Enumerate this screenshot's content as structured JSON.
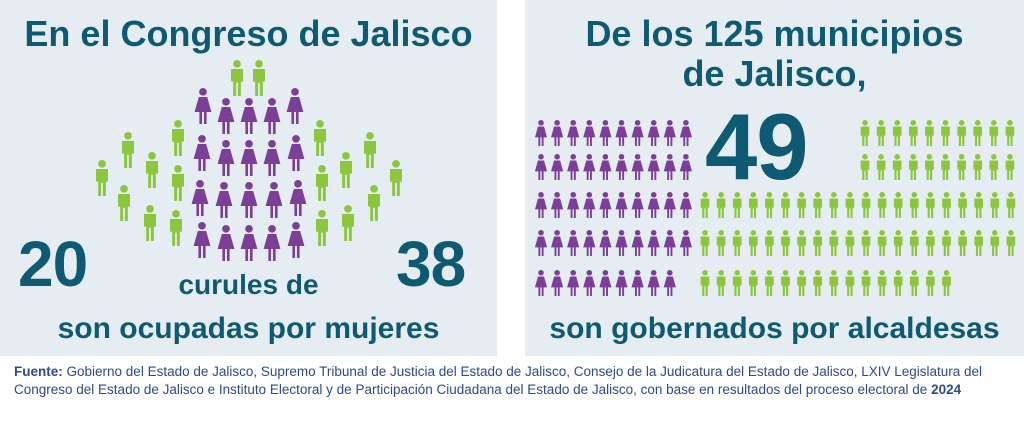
{
  "colors": {
    "teal": "#0e5a73",
    "green": "#8cc63f",
    "purple": "#7b3f98",
    "panel_bg": "#e6edf2",
    "footer_text": "#2c4a8c"
  },
  "left_panel": {
    "title": "En el Congreso de Jalisco",
    "number_women": "20",
    "middle_text": "curules de",
    "number_total": "38",
    "bottom_text": "son ocupadas por mujeres",
    "seats": {
      "women": 20,
      "total": 38
    },
    "icons": {
      "women": "woman-icon",
      "men": "man-icon"
    }
  },
  "right_panel": {
    "title_line1": "De los 125 municipios",
    "title_line2": "de Jalisco,",
    "big_number": "49",
    "bottom_text": "son gobernados por alcaldesas",
    "municipalities": {
      "women": 49,
      "total": 125
    }
  },
  "footer": {
    "label": "Fuente:",
    "text": "Gobierno del Estado de Jalisco, Supremo Tribunal de Justicia del Estado de Jalisco, Consejo de la Judicatura del Estado de Jalisco, LXIV Legislatura del Congreso del Estado de Jalisco e Instituto Electoral y de Participación Ciudadana del Estado de Jalisco, con base en resultados del proceso electoral de",
    "year": "2024"
  }
}
